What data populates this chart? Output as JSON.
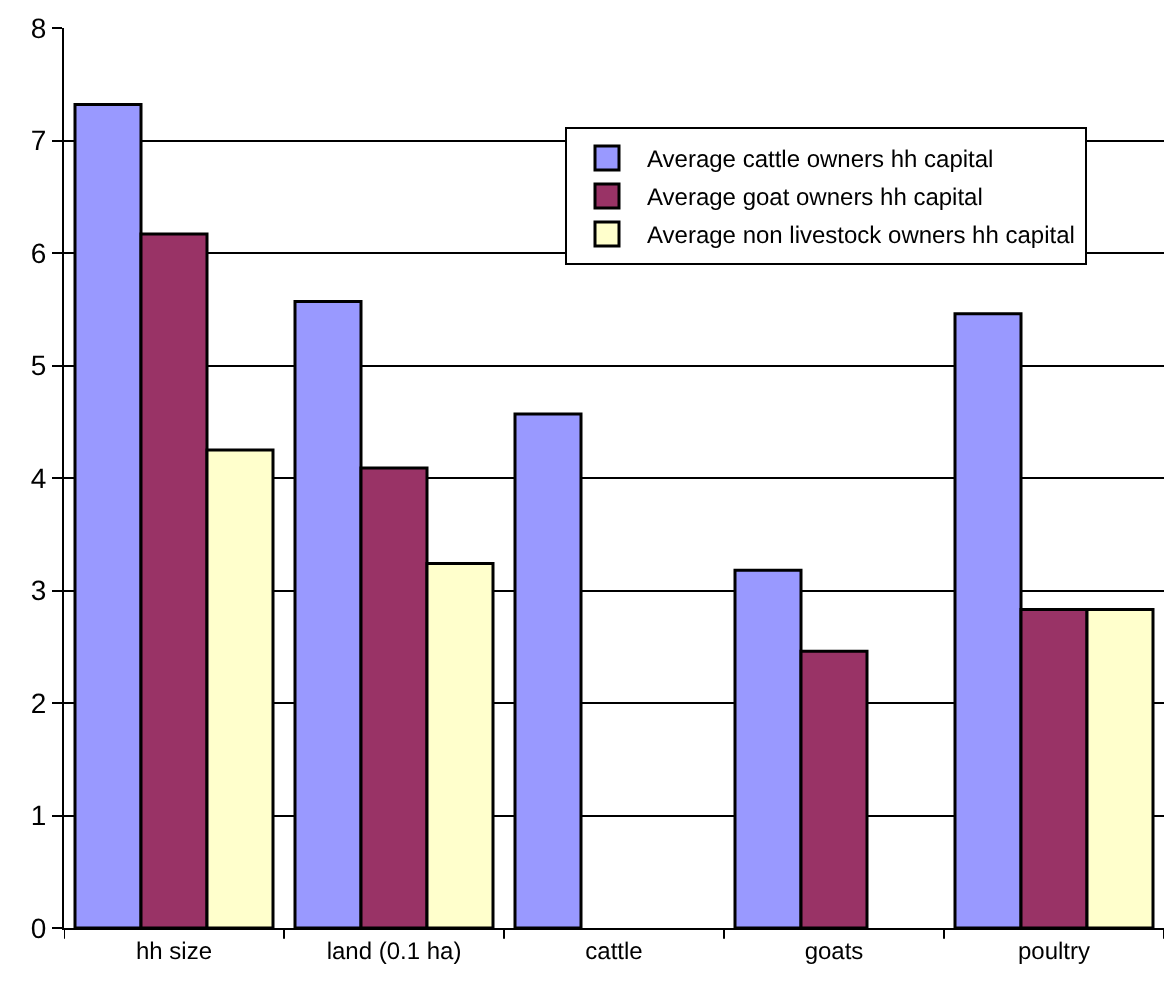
{
  "chart_data": {
    "type": "bar",
    "categories": [
      "hh size",
      "land (0.1 ha)",
      "cattle",
      "goats",
      "poultry"
    ],
    "series": [
      {
        "name": "Average cattle owners hh capital",
        "color": "#9999ff",
        "values": [
          7.32,
          5.57,
          4.57,
          3.18,
          5.46
        ]
      },
      {
        "name": "Average goat owners hh capital",
        "color": "#993366",
        "values": [
          6.17,
          4.09,
          null,
          2.46,
          2.83
        ]
      },
      {
        "name": "Average non livestock owners hh capital",
        "color": "#ffffcc",
        "values": [
          4.25,
          3.24,
          null,
          null,
          2.83
        ]
      }
    ],
    "ylim": [
      0,
      8
    ],
    "yticks": [
      0,
      1,
      2,
      3,
      4,
      5,
      6,
      7,
      8
    ],
    "grid": "y",
    "legend": "top right"
  }
}
